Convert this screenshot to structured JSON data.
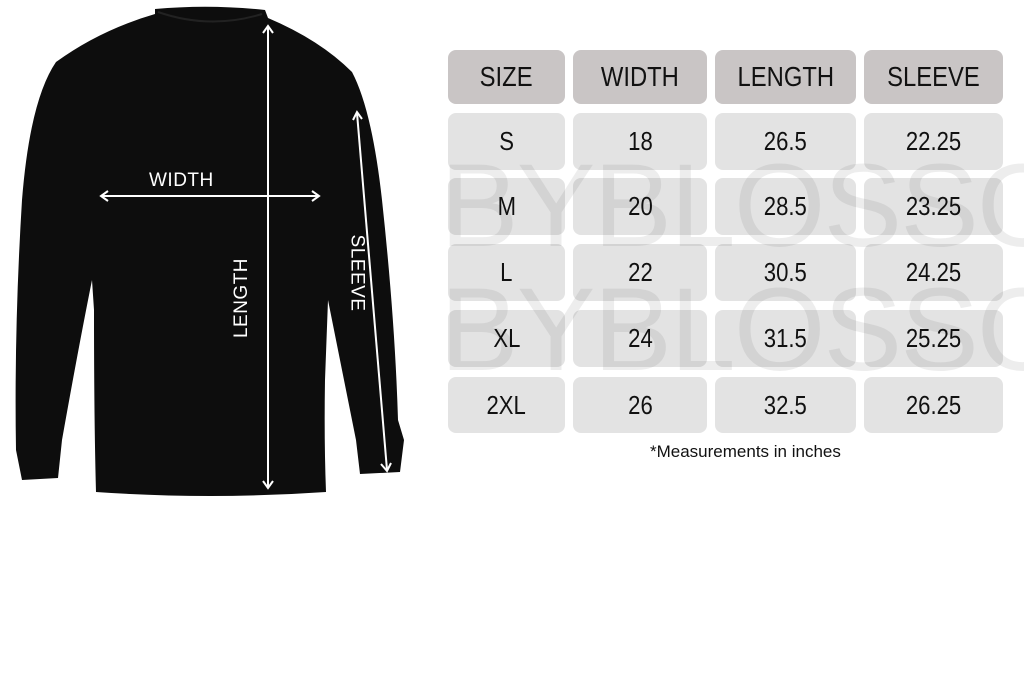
{
  "diagram": {
    "labels": {
      "width": "WIDTH",
      "length": "LENGTH",
      "sleeve": "SLEEVE"
    },
    "garment_color": "#0d0d0d"
  },
  "table": {
    "headers": [
      "SIZE",
      "WIDTH",
      "LENGTH",
      "SLEEVE"
    ],
    "rows": [
      [
        "S",
        "18",
        "26.5",
        "22.25"
      ],
      [
        "M",
        "20",
        "28.5",
        "23.25"
      ],
      [
        "L",
        "22",
        "30.5",
        "24.25"
      ],
      [
        "XL",
        "24",
        "31.5",
        "25.25"
      ],
      [
        "2XL",
        "26",
        "32.5",
        "26.25"
      ]
    ],
    "header_color": "#c9c5c5",
    "cell_color": "#e3e3e3"
  },
  "note": "*Measurements in inches",
  "watermark": "BYBLOSSOM"
}
